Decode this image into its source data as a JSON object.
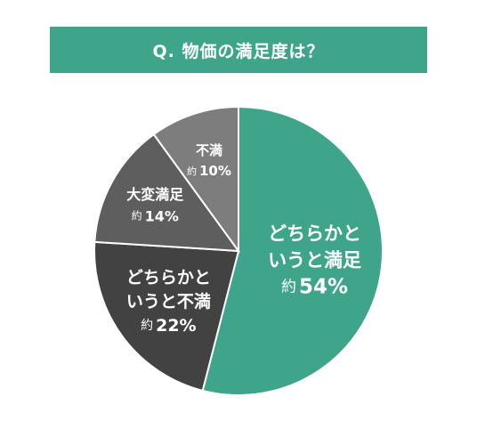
{
  "chart_data": {
    "type": "pie",
    "title": "Q. 物価の満足度は？",
    "slices": [
      {
        "lines": [
          "どちらかと",
          "いうと満足"
        ],
        "prefix": "約",
        "value": 54,
        "unit": "%",
        "color": "#3fa58a"
      },
      {
        "lines": [
          "どちらかと",
          "いうと不満"
        ],
        "prefix": "約",
        "value": 22,
        "unit": "%",
        "color": "#424242"
      },
      {
        "lines": [
          "大変満足"
        ],
        "prefix": "約",
        "value": 14,
        "unit": "%",
        "color": "#5e5e5e"
      },
      {
        "lines": [
          "不満"
        ],
        "prefix": "約",
        "value": 10,
        "unit": "%",
        "color": "#7d7d7d"
      }
    ],
    "start": "12 o'clock",
    "direction": "clockwise"
  }
}
